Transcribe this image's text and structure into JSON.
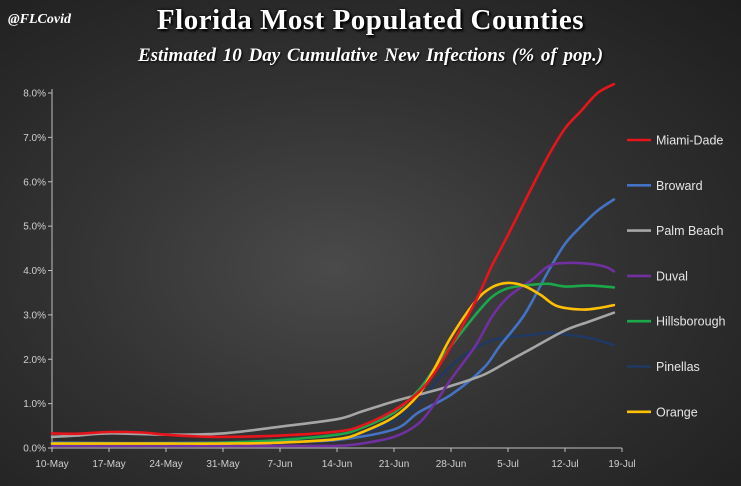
{
  "header": {
    "handle": "@FLCovid",
    "title": "Florida Most Populated Counties",
    "subtitle": "Estimated 10 Day Cumulative New Infections (% of pop.)"
  },
  "chart_data": {
    "type": "line",
    "title": "Florida Most Populated Counties",
    "subtitle": "Estimated 10 Day Cumulative New Infections (% of pop.)",
    "xlabel": "",
    "ylabel": "",
    "x_ticks": [
      "10-May",
      "17-May",
      "24-May",
      "31-May",
      "7-Jun",
      "14-Jun",
      "21-Jun",
      "28-Jun",
      "5-Jul",
      "12-Jul",
      "19-Jul"
    ],
    "y_ticks": [
      "0.0%",
      "1.0%",
      "2.0%",
      "3.0%",
      "4.0%",
      "5.0%",
      "6.0%",
      "7.0%",
      "8.0%"
    ],
    "ylim": [
      0,
      8.2
    ],
    "xlim_days_from_first_tick": [
      0,
      70
    ],
    "grid": false,
    "legend_position": "right",
    "series": [
      {
        "name": "Miami-Dade",
        "color": "#e8141b",
        "points": [
          [
            "10-May",
            0.33
          ],
          [
            "13-May",
            0.32
          ],
          [
            "17-May",
            0.36
          ],
          [
            "21-May",
            0.35
          ],
          [
            "24-May",
            0.3
          ],
          [
            "28-May",
            0.26
          ],
          [
            "31-May",
            0.25
          ],
          [
            "7-Jun",
            0.28
          ],
          [
            "14-Jun",
            0.37
          ],
          [
            "17-Jun",
            0.5
          ],
          [
            "21-Jun",
            0.85
          ],
          [
            "24-Jun",
            1.25
          ],
          [
            "26-Jun",
            1.7
          ],
          [
            "28-Jun",
            2.3
          ],
          [
            "1-Jul",
            3.3
          ],
          [
            "3-Jul",
            4.1
          ],
          [
            "5-Jul",
            4.8
          ],
          [
            "8-Jul",
            5.9
          ],
          [
            "10-Jul",
            6.6
          ],
          [
            "12-Jul",
            7.2
          ],
          [
            "14-Jul",
            7.6
          ],
          [
            "16-Jul",
            8.0
          ],
          [
            "18-Jul",
            8.2
          ]
        ]
      },
      {
        "name": "Broward",
        "color": "#4472c4",
        "points": [
          [
            "10-May",
            0.12
          ],
          [
            "17-May",
            0.11
          ],
          [
            "24-May",
            0.11
          ],
          [
            "31-May",
            0.12
          ],
          [
            "7-Jun",
            0.14
          ],
          [
            "14-Jun",
            0.18
          ],
          [
            "21-Jun",
            0.42
          ],
          [
            "24-Jun",
            0.8
          ],
          [
            "28-Jun",
            1.2
          ],
          [
            "2-Jul",
            1.8
          ],
          [
            "4-Jul",
            2.3
          ],
          [
            "7-Jul",
            3.0
          ],
          [
            "10-Jul",
            4.0
          ],
          [
            "12-Jul",
            4.6
          ],
          [
            "14-Jul",
            5.0
          ],
          [
            "16-Jul",
            5.35
          ],
          [
            "18-Jul",
            5.6
          ]
        ]
      },
      {
        "name": "Palm Beach",
        "color": "#a6a6a6",
        "points": [
          [
            "10-May",
            0.25
          ],
          [
            "13-May",
            0.28
          ],
          [
            "17-May",
            0.33
          ],
          [
            "24-May",
            0.3
          ],
          [
            "31-May",
            0.33
          ],
          [
            "7-Jun",
            0.48
          ],
          [
            "14-Jun",
            0.65
          ],
          [
            "17-Jun",
            0.82
          ],
          [
            "21-Jun",
            1.05
          ],
          [
            "24-Jun",
            1.2
          ],
          [
            "28-Jun",
            1.4
          ],
          [
            "2-Jul",
            1.65
          ],
          [
            "5-Jul",
            1.95
          ],
          [
            "8-Jul",
            2.25
          ],
          [
            "12-Jul",
            2.65
          ],
          [
            "15-Jul",
            2.85
          ],
          [
            "18-Jul",
            3.05
          ]
        ]
      },
      {
        "name": "Duval",
        "color": "#7030a0",
        "points": [
          [
            "10-May",
            0.05
          ],
          [
            "17-May",
            0.05
          ],
          [
            "24-May",
            0.05
          ],
          [
            "31-May",
            0.05
          ],
          [
            "7-Jun",
            0.05
          ],
          [
            "14-Jun",
            0.05
          ],
          [
            "17-Jun",
            0.1
          ],
          [
            "21-Jun",
            0.25
          ],
          [
            "24-Jun",
            0.55
          ],
          [
            "26-Jun",
            1.0
          ],
          [
            "28-Jun",
            1.55
          ],
          [
            "1-Jul",
            2.3
          ],
          [
            "3-Jul",
            2.95
          ],
          [
            "5-Jul",
            3.4
          ],
          [
            "8-Jul",
            3.8
          ],
          [
            "10-Jul",
            4.1
          ],
          [
            "12-Jul",
            4.17
          ],
          [
            "15-Jul",
            4.15
          ],
          [
            "17-Jul",
            4.08
          ],
          [
            "18-Jul",
            3.98
          ]
        ]
      },
      {
        "name": "Hillsborough",
        "color": "#1aa84b",
        "points": [
          [
            "10-May",
            0.1
          ],
          [
            "17-May",
            0.1
          ],
          [
            "24-May",
            0.1
          ],
          [
            "31-May",
            0.12
          ],
          [
            "7-Jun",
            0.18
          ],
          [
            "14-Jun",
            0.3
          ],
          [
            "17-Jun",
            0.45
          ],
          [
            "21-Jun",
            0.8
          ],
          [
            "24-Jun",
            1.3
          ],
          [
            "26-Jun",
            1.8
          ],
          [
            "28-Jun",
            2.3
          ],
          [
            "1-Jul",
            3.0
          ],
          [
            "3-Jul",
            3.4
          ],
          [
            "5-Jul",
            3.6
          ],
          [
            "8-Jul",
            3.68
          ],
          [
            "10-Jul",
            3.7
          ],
          [
            "12-Jul",
            3.64
          ],
          [
            "15-Jul",
            3.66
          ],
          [
            "18-Jul",
            3.62
          ]
        ]
      },
      {
        "name": "Pinellas",
        "color": "#203864",
        "points": [
          [
            "10-May",
            0.1
          ],
          [
            "17-May",
            0.1
          ],
          [
            "24-May",
            0.1
          ],
          [
            "31-May",
            0.1
          ],
          [
            "7-Jun",
            0.12
          ],
          [
            "14-Jun",
            0.2
          ],
          [
            "17-Jun",
            0.32
          ],
          [
            "21-Jun",
            0.6
          ],
          [
            "24-Jun",
            1.0
          ],
          [
            "26-Jun",
            1.45
          ],
          [
            "28-Jun",
            1.85
          ],
          [
            "1-Jul",
            2.25
          ],
          [
            "3-Jul",
            2.42
          ],
          [
            "5-Jul",
            2.5
          ],
          [
            "8-Jul",
            2.55
          ],
          [
            "10-Jul",
            2.6
          ],
          [
            "12-Jul",
            2.56
          ],
          [
            "15-Jul",
            2.48
          ],
          [
            "18-Jul",
            2.32
          ]
        ]
      },
      {
        "name": "Orange",
        "color": "#ffc000",
        "points": [
          [
            "10-May",
            0.1
          ],
          [
            "17-May",
            0.1
          ],
          [
            "24-May",
            0.1
          ],
          [
            "31-May",
            0.1
          ],
          [
            "7-Jun",
            0.12
          ],
          [
            "14-Jun",
            0.2
          ],
          [
            "17-Jun",
            0.35
          ],
          [
            "21-Jun",
            0.7
          ],
          [
            "24-Jun",
            1.2
          ],
          [
            "26-Jun",
            1.8
          ],
          [
            "28-Jun",
            2.5
          ],
          [
            "1-Jul",
            3.3
          ],
          [
            "3-Jul",
            3.62
          ],
          [
            "5-Jul",
            3.72
          ],
          [
            "7-Jul",
            3.65
          ],
          [
            "9-Jul",
            3.45
          ],
          [
            "11-Jul",
            3.2
          ],
          [
            "14-Jul",
            3.12
          ],
          [
            "16-Jul",
            3.15
          ],
          [
            "18-Jul",
            3.22
          ]
        ]
      }
    ]
  }
}
